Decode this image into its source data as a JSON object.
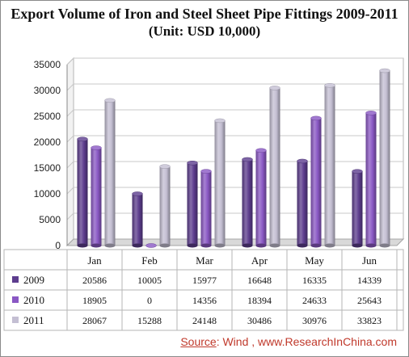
{
  "title": "Export Volume of Iron and Steel Sheet Pipe Fittings 2009-2011",
  "subtitle": "(Unit: USD 10,000)",
  "source": {
    "label": "Source",
    "text": ": Wind , www.ResearchInChina.com"
  },
  "colors": {
    "s2009": "#5d3d8e",
    "s2010": "#8a58c4",
    "s2011": "#c4bfd3",
    "source_text": "#c0392b"
  },
  "chart_data": {
    "type": "bar",
    "title": "Export Volume of Iron and Steel Sheet Pipe Fittings 2009-2011",
    "subtitle": "(Unit: USD 10,000)",
    "categories": [
      "Jan",
      "Feb",
      "Mar",
      "Apr",
      "May",
      "Jun"
    ],
    "series": [
      {
        "name": "2009",
        "values": [
          20586,
          10005,
          15977,
          16648,
          16335,
          14339
        ]
      },
      {
        "name": "2010",
        "values": [
          18905,
          0,
          14356,
          18394,
          24633,
          25643
        ]
      },
      {
        "name": "2011",
        "values": [
          28067,
          15288,
          24148,
          30486,
          30976,
          33823
        ]
      }
    ],
    "ylim": [
      0,
      35000
    ],
    "yticks": [
      0,
      5000,
      10000,
      15000,
      20000,
      25000,
      30000,
      35000
    ],
    "grid": true,
    "legend": "data-table"
  }
}
